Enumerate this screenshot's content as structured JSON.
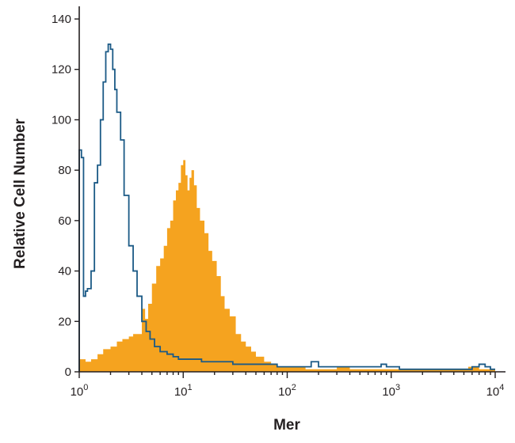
{
  "chart_data": {
    "type": "area",
    "xlabel": "Mer",
    "ylabel": "Relative Cell Number",
    "x_scale": "log",
    "xlim": [
      1,
      10000
    ],
    "ylim": [
      0,
      140
    ],
    "x_ticks": [
      {
        "value": 1,
        "base": "10",
        "exp": "0"
      },
      {
        "value": 10,
        "base": "10",
        "exp": "1"
      },
      {
        "value": 100,
        "base": "10",
        "exp": "2"
      },
      {
        "value": 1000,
        "base": "10",
        "exp": "3"
      },
      {
        "value": 10000,
        "base": "10",
        "exp": "4"
      }
    ],
    "y_ticks": [
      0,
      20,
      40,
      60,
      80,
      100,
      120,
      140
    ],
    "grid": false,
    "legend": "none",
    "series": [
      {
        "style": "filled",
        "color": "#f5a31f",
        "x": [
          1.0,
          1.15,
          1.3,
          1.5,
          1.7,
          2.0,
          2.3,
          2.6,
          3.0,
          3.3,
          3.6,
          4.0,
          4.3,
          4.6,
          5.0,
          5.5,
          6.0,
          6.5,
          7.0,
          7.5,
          8.0,
          8.5,
          9.0,
          9.5,
          10.0,
          10.5,
          11.0,
          11.5,
          12.0,
          12.7,
          13.5,
          14.5,
          16.0,
          17.5,
          19.0,
          21.0,
          23.0,
          25.0,
          28.0,
          32.0,
          36.0,
          40.0,
          45.0,
          50.0,
          60.0,
          70.0,
          80.0,
          100.0,
          150.0,
          200.0,
          300.0,
          400.0,
          500.0,
          700.0,
          1000.0,
          2000.0,
          3000.0,
          5000.0,
          5500.0,
          7000.0,
          10000.0
        ],
        "y": [
          5,
          4,
          5,
          7,
          9,
          10,
          12,
          13,
          14,
          15,
          15,
          25,
          21,
          27,
          35,
          42,
          45,
          50,
          57,
          60,
          68,
          72,
          75,
          82,
          84,
          78,
          72,
          77,
          80,
          74,
          65,
          60,
          55,
          48,
          44,
          38,
          30,
          25,
          22,
          15,
          12,
          10,
          8,
          6,
          4,
          3,
          2,
          2,
          1,
          1,
          2,
          1,
          1,
          1,
          1,
          1,
          1,
          1,
          2,
          1,
          1
        ]
      },
      {
        "style": "outline",
        "color": "#1b5a86",
        "x": [
          1.0,
          1.05,
          1.1,
          1.15,
          1.2,
          1.3,
          1.4,
          1.5,
          1.6,
          1.7,
          1.8,
          1.9,
          2.0,
          2.1,
          2.2,
          2.3,
          2.5,
          2.7,
          3.0,
          3.3,
          3.6,
          4.0,
          4.4,
          4.8,
          5.3,
          6.0,
          7.0,
          8.0,
          9.0,
          10.0,
          12.0,
          15.0,
          20.0,
          30.0,
          40.0,
          60.0,
          80.0,
          100.0,
          150.0,
          170.0,
          200.0,
          300.0,
          500.0,
          700.0,
          800.0,
          900.0,
          1200.0,
          2000.0,
          4000.0,
          6000.0,
          7000.0,
          8000.0,
          9000.0,
          10000.0
        ],
        "y": [
          88,
          85,
          30,
          32,
          33,
          40,
          75,
          82,
          100,
          115,
          127,
          130,
          128,
          120,
          112,
          103,
          92,
          70,
          50,
          40,
          30,
          20,
          16,
          13,
          10,
          8,
          7,
          6,
          5,
          5,
          5,
          4,
          4,
          3,
          3,
          3,
          2,
          2,
          2,
          4,
          2,
          2,
          2,
          2,
          3,
          2,
          1,
          1,
          1,
          2,
          3,
          2,
          1,
          1
        ]
      }
    ]
  }
}
